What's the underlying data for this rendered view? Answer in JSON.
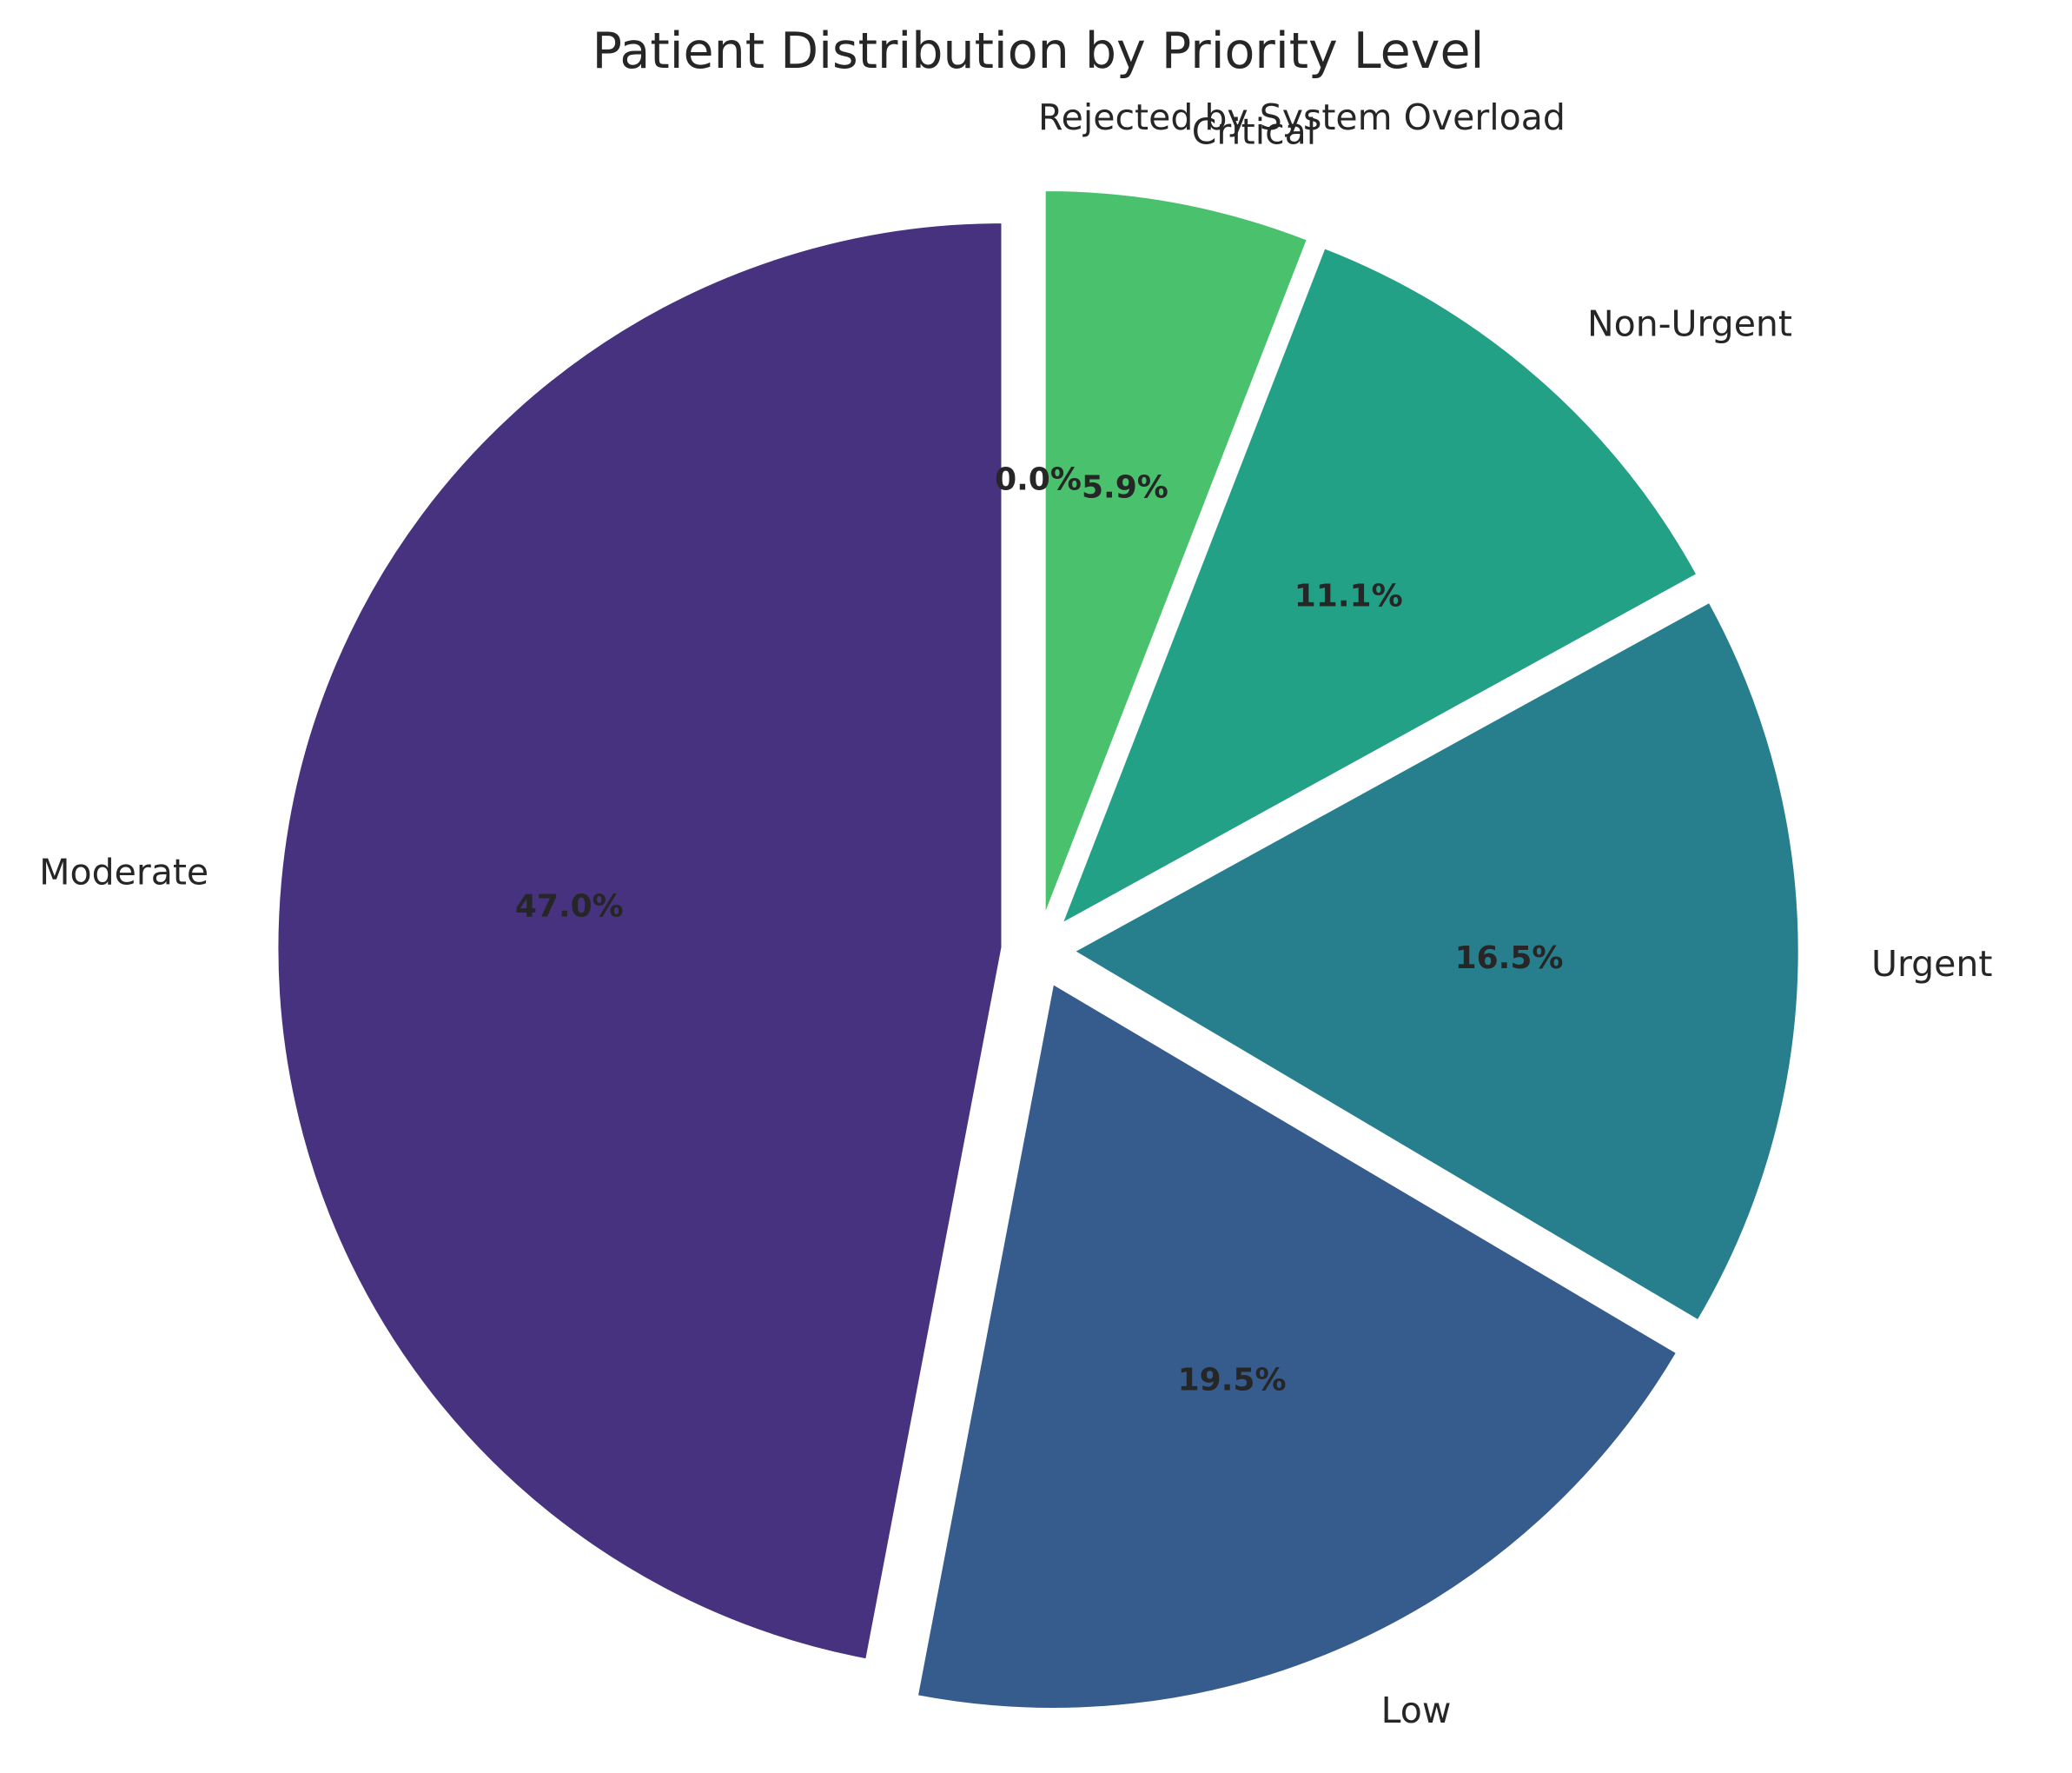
{
  "chart_data": {
    "type": "pie",
    "title": "Patient Distribution by Priority Level",
    "start_angle_deg": 90,
    "direction": "clockwise",
    "exploded": true,
    "slices": [
      {
        "label": "Rejected by System Overload",
        "pct_text": "0.0%",
        "value": 0.0,
        "color": "#440154"
      },
      {
        "label": "Critical",
        "pct_text": "5.9%",
        "value": 5.9,
        "color": "#4ac16d"
      },
      {
        "label": "Non-Urgent",
        "pct_text": "11.1%",
        "value": 11.1,
        "color": "#22a187"
      },
      {
        "label": "Urgent",
        "pct_text": "16.5%",
        "value": 16.5,
        "color": "#277f8e"
      },
      {
        "label": "Low",
        "pct_text": "19.5%",
        "value": 19.5,
        "color": "#365c8d"
      },
      {
        "label": "Moderate",
        "pct_text": "47.0%",
        "value": 47.0,
        "color": "#46327e"
      }
    ]
  }
}
